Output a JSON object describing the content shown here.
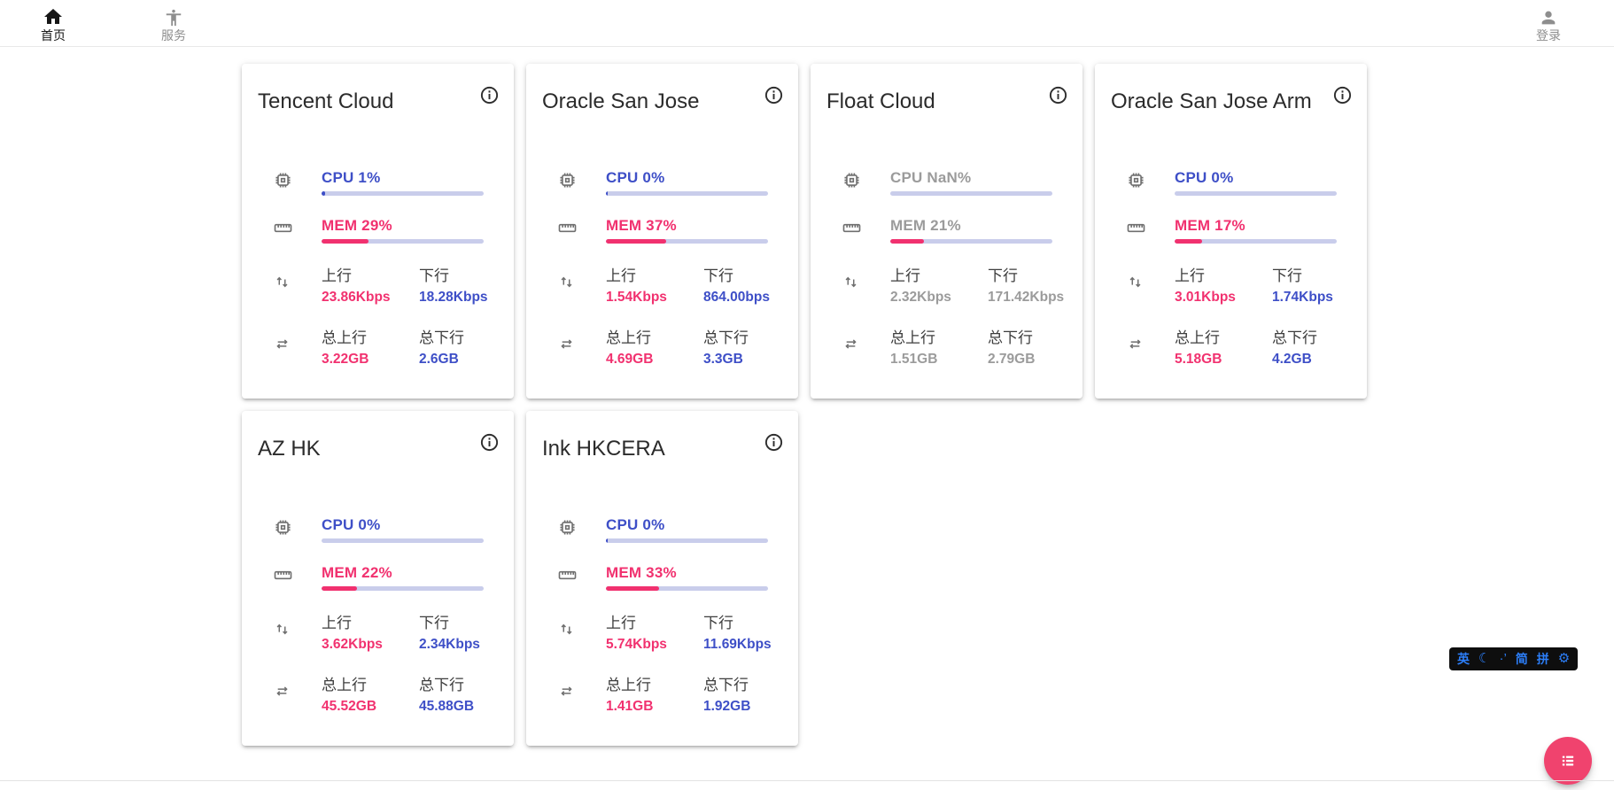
{
  "nav": {
    "items": [
      {
        "label": "首页",
        "icon": "home-icon",
        "active": true
      },
      {
        "label": "服务",
        "icon": "accessibility-icon",
        "active": false
      }
    ],
    "login": {
      "label": "登录",
      "icon": "person-icon"
    }
  },
  "metrics_labels": {
    "upload": "上行",
    "download": "下行",
    "total_upload": "总上行",
    "total_download": "总下行"
  },
  "servers": [
    {
      "name": "Tencent Cloud",
      "cpu_text": "CPU 1%",
      "cpu_bar": 2,
      "mem_text": "MEM 29%",
      "mem_pct": 29,
      "up": "23.86Kbps",
      "down": "18.28Kbps",
      "total_up": "3.22GB",
      "total_down": "2.6GB",
      "muted": false
    },
    {
      "name": "Oracle San Jose",
      "cpu_text": "CPU 0%",
      "cpu_bar": 1,
      "mem_text": "MEM 37%",
      "mem_pct": 37,
      "up": "1.54Kbps",
      "down": "864.00bps",
      "total_up": "4.69GB",
      "total_down": "3.3GB",
      "muted": false
    },
    {
      "name": "Float Cloud",
      "cpu_text": "CPU NaN%",
      "cpu_bar": 0,
      "mem_text": "MEM 21%",
      "mem_pct": 21,
      "up": "2.32Kbps",
      "down": "171.42Kbps",
      "total_up": "1.51GB",
      "total_down": "2.79GB",
      "muted": true
    },
    {
      "name": "Oracle San Jose Arm",
      "cpu_text": "CPU 0%",
      "cpu_bar": 0,
      "mem_text": "MEM 17%",
      "mem_pct": 17,
      "up": "3.01Kbps",
      "down": "1.74Kbps",
      "total_up": "5.18GB",
      "total_down": "4.2GB",
      "muted": false
    },
    {
      "name": "AZ HK",
      "cpu_text": "CPU 0%",
      "cpu_bar": 0,
      "mem_text": "MEM 22%",
      "mem_pct": 22,
      "up": "3.62Kbps",
      "down": "2.34Kbps",
      "total_up": "45.52GB",
      "total_down": "45.88GB",
      "muted": false
    },
    {
      "name": "Ink HKCERA",
      "cpu_text": "CPU 0%",
      "cpu_bar": 1,
      "mem_text": "MEM 33%",
      "mem_pct": 33,
      "up": "5.74Kbps",
      "down": "11.69Kbps",
      "total_up": "1.41GB",
      "total_down": "1.92GB",
      "muted": false
    }
  ],
  "fab": {
    "icon": "list-icon",
    "color": "#f0436e"
  },
  "ime": {
    "items": [
      {
        "name": "ime-english-mode",
        "glyph": "英"
      },
      {
        "name": "ime-moon-icon",
        "glyph": "☾"
      },
      {
        "name": "ime-punctuation-indicator",
        "glyph": "·’"
      },
      {
        "name": "ime-simplified-indicator",
        "glyph": "简"
      },
      {
        "name": "ime-pinyin-indicator",
        "glyph": "拼"
      },
      {
        "name": "ime-settings-gear-icon",
        "glyph": "⚙"
      }
    ]
  },
  "colors": {
    "accent_blue": "#3e4fc7",
    "accent_pink": "#f1316f",
    "bar_track": "#c9cdeb",
    "muted_gray": "#9b9b9b"
  }
}
